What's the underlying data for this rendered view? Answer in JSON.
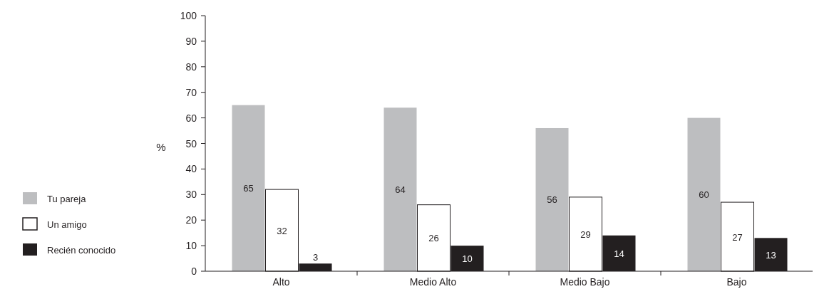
{
  "chart_data": {
    "type": "bar",
    "ylabel": "%",
    "categories": [
      "Alto",
      "Medio Alto",
      "Medio Bajo",
      "Bajo"
    ],
    "series": [
      {
        "name": "Tu pareja",
        "color": "#bdbec0",
        "values": [
          65,
          64,
          56,
          60
        ]
      },
      {
        "name": "Un amigo",
        "color": "#ffffff",
        "values": [
          32,
          26,
          29,
          27
        ]
      },
      {
        "name": "Recién conocido",
        "color": "#231f20",
        "values": [
          3,
          10,
          14,
          13
        ]
      }
    ],
    "ylim": [
      0,
      100
    ],
    "yticks": [
      0,
      10,
      20,
      30,
      40,
      50,
      60,
      70,
      80,
      90,
      100
    ],
    "data_labels": true,
    "legend": "left",
    "grid": false
  }
}
